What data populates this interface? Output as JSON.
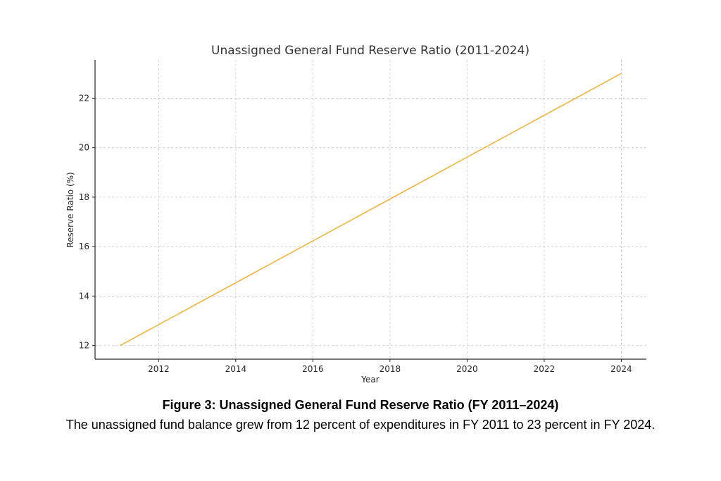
{
  "chart_data": {
    "type": "line",
    "title": "Unassigned General Fund Reserve Ratio (2011-2024)",
    "xlabel": "Year",
    "ylabel": "Reserve Ratio (%)",
    "x_ticks": [
      2012,
      2014,
      2016,
      2018,
      2020,
      2022,
      2024
    ],
    "y_ticks": [
      12,
      14,
      16,
      18,
      20,
      22
    ],
    "xlim": [
      2010.35,
      2024.65
    ],
    "ylim": [
      11.45,
      23.55
    ],
    "grid": true,
    "series": [
      {
        "color": "#F2B33D",
        "x": [
          2011,
          2024
        ],
        "y": [
          12,
          23
        ]
      }
    ]
  },
  "caption": {
    "title": "Figure 3: Unassigned General Fund Reserve Ratio (FY 2011–2024)",
    "text": "The unassigned fund balance grew from 12 percent of expenditures in FY 2011 to 23 percent in FY 2024."
  }
}
